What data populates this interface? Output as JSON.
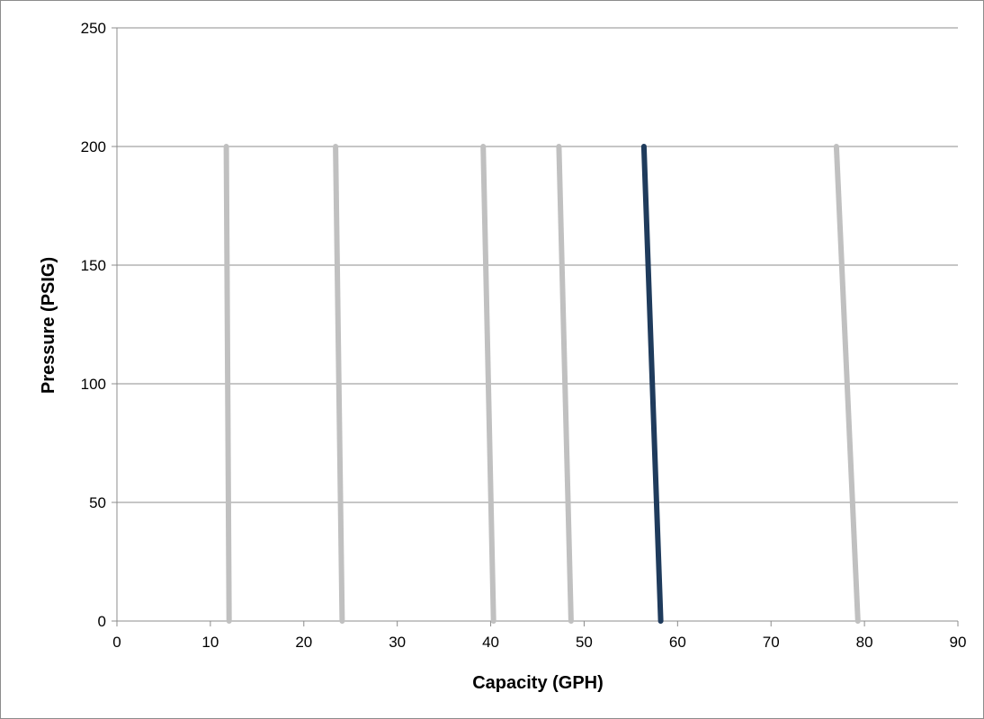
{
  "chart_data": {
    "type": "line",
    "title": "",
    "xlabel": "Capacity (GPH)",
    "ylabel": "Pressure (PSIG)",
    "xlim": [
      0,
      90
    ],
    "ylim": [
      0,
      250
    ],
    "x_ticks": [
      "0",
      "10",
      "20",
      "30",
      "40",
      "50",
      "60",
      "70",
      "80",
      "90"
    ],
    "y_ticks": [
      "0",
      "50",
      "100",
      "150",
      "200",
      "250"
    ],
    "grid": "horizontal",
    "legend": "none",
    "colors": {
      "gray_series": "#c0c0c0",
      "highlight_series": "#1f3b5c",
      "gridline": "#8c8c8c"
    },
    "series": [
      {
        "points": [
          {
            "x": 11.7,
            "y": 200
          },
          {
            "x": 12.0,
            "y": 0
          }
        ],
        "color": "#c0c0c0"
      },
      {
        "points": [
          {
            "x": 23.4,
            "y": 200
          },
          {
            "x": 24.1,
            "y": 0
          }
        ],
        "color": "#c0c0c0"
      },
      {
        "points": [
          {
            "x": 39.2,
            "y": 200
          },
          {
            "x": 40.3,
            "y": 0
          }
        ],
        "color": "#c0c0c0"
      },
      {
        "points": [
          {
            "x": 47.3,
            "y": 200
          },
          {
            "x": 48.6,
            "y": 0
          }
        ],
        "color": "#c0c0c0"
      },
      {
        "points": [
          {
            "x": 56.4,
            "y": 200
          },
          {
            "x": 58.2,
            "y": 0
          }
        ],
        "color": "#1f3b5c"
      },
      {
        "points": [
          {
            "x": 77.0,
            "y": 200
          },
          {
            "x": 79.3,
            "y": 0
          }
        ],
        "color": "#c0c0c0"
      }
    ]
  }
}
